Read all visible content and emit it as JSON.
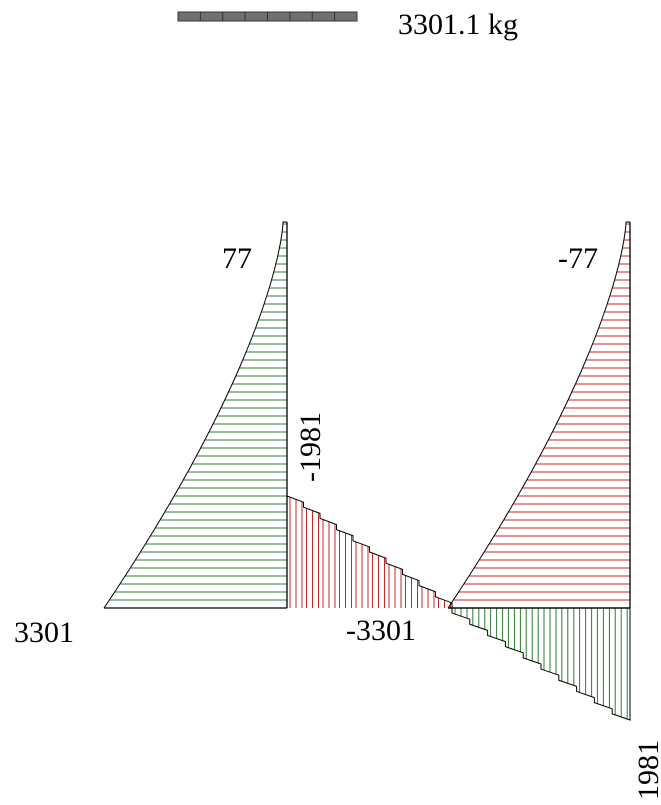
{
  "scale": {
    "label": "3301.1 kg",
    "bar_color": "#707070",
    "segments": 8
  },
  "labels": {
    "left_top": "77",
    "left_bottom": "3301",
    "mid_top": "-1981",
    "mid_bottom": "-3301",
    "right_top": "-77",
    "right_bottom": "1981"
  },
  "colors": {
    "green": "#2e7d32",
    "red": "#c62828",
    "outline": "#000000"
  },
  "diagrams": {
    "left_parabola": {
      "color": "green",
      "hatch": "horizontal",
      "top_value": "77",
      "bottom_value": "3301"
    },
    "left_steps": {
      "color": "red",
      "hatch": "vertical",
      "steps": 10,
      "start_value": "-1981",
      "end_value": "-3301"
    },
    "right_parabola": {
      "color": "red",
      "hatch": "horizontal",
      "top_value": "-77",
      "bottom_value": "-3301"
    },
    "right_steps": {
      "color": "green",
      "hatch": "vertical",
      "steps": 10,
      "end_value": "1981"
    }
  }
}
